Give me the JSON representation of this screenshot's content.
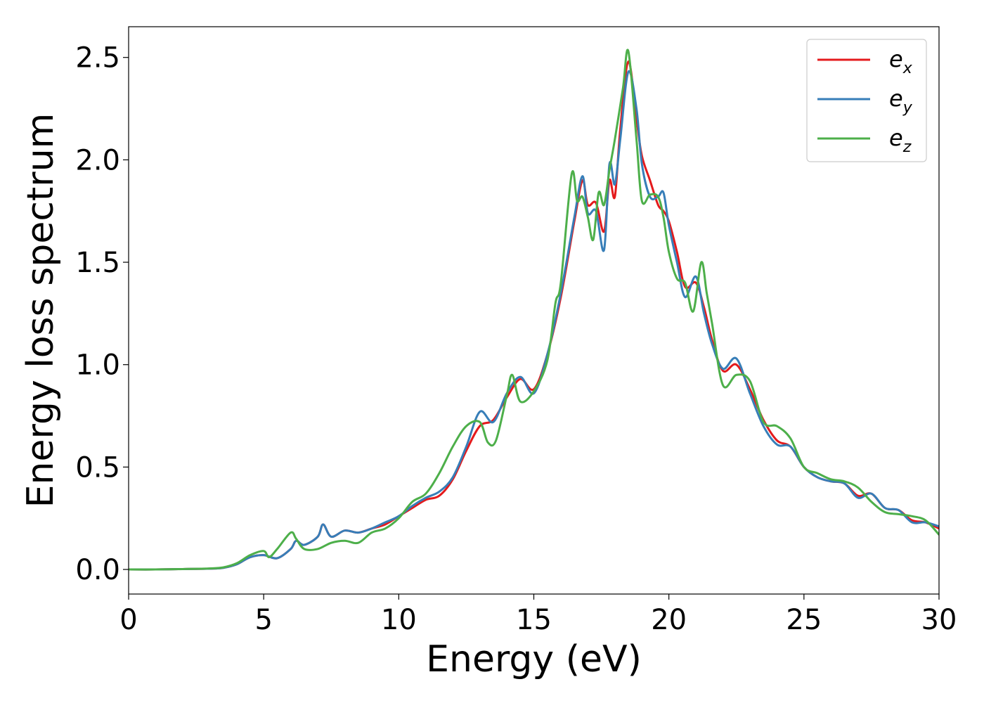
{
  "chart_data": {
    "type": "line",
    "title": "",
    "xlabel": "Energy (eV)",
    "ylabel": "Energy loss spectrum",
    "xlim": [
      0,
      30
    ],
    "ylim": [
      -0.12,
      2.65
    ],
    "xticks": [
      0,
      5,
      10,
      15,
      20,
      25,
      30
    ],
    "xtick_labels": [
      "0",
      "5",
      "10",
      "15",
      "20",
      "25",
      "30"
    ],
    "yticks": [
      0.0,
      0.5,
      1.0,
      1.5,
      2.0,
      2.5
    ],
    "ytick_labels": [
      "0.0",
      "0.5",
      "1.0",
      "1.5",
      "2.0",
      "2.5"
    ],
    "grid": false,
    "legend_position": "top-right",
    "series": [
      {
        "name": "e_x",
        "label_base": "e",
        "label_sub": "x",
        "color": "#e41a1c",
        "x": [
          0,
          1,
          2,
          3,
          3.5,
          4,
          4.5,
          5,
          5.5,
          6,
          6.2,
          6.5,
          7,
          7.2,
          7.5,
          8,
          8.5,
          9,
          9.5,
          10,
          10.5,
          11,
          11.5,
          12,
          12.5,
          13,
          13.5,
          14,
          14.5,
          15,
          15.5,
          16,
          16.5,
          16.8,
          17,
          17.3,
          17.6,
          17.8,
          18,
          18.2,
          18.5,
          18.8,
          19,
          19.3,
          19.6,
          19.8,
          20,
          20.3,
          20.6,
          21,
          21.3,
          21.6,
          22,
          22.5,
          23,
          23.5,
          24,
          24.5,
          25,
          25.5,
          26,
          26.5,
          27,
          27.5,
          28,
          28.5,
          29,
          29.5,
          30
        ],
        "y": [
          0,
          0,
          0.002,
          0.004,
          0.008,
          0.025,
          0.06,
          0.07,
          0.055,
          0.1,
          0.14,
          0.12,
          0.16,
          0.22,
          0.16,
          0.19,
          0.18,
          0.2,
          0.22,
          0.26,
          0.3,
          0.34,
          0.36,
          0.44,
          0.58,
          0.7,
          0.73,
          0.84,
          0.93,
          0.88,
          1.05,
          1.33,
          1.7,
          1.9,
          1.78,
          1.79,
          1.65,
          1.9,
          1.82,
          2.15,
          2.48,
          2.2,
          2.02,
          1.9,
          1.78,
          1.75,
          1.7,
          1.55,
          1.38,
          1.4,
          1.28,
          1.12,
          0.97,
          1.0,
          0.88,
          0.73,
          0.63,
          0.6,
          0.5,
          0.45,
          0.43,
          0.42,
          0.36,
          0.37,
          0.3,
          0.29,
          0.24,
          0.23,
          0.2
        ]
      },
      {
        "name": "e_y",
        "label_base": "e",
        "label_sub": "y",
        "color": "#377eb8",
        "x": [
          0,
          1,
          2,
          3,
          3.5,
          4,
          4.5,
          5,
          5.5,
          6,
          6.2,
          6.5,
          7,
          7.2,
          7.5,
          8,
          8.5,
          9,
          9.5,
          10,
          10.5,
          11,
          11.5,
          12,
          12.5,
          13,
          13.5,
          14,
          14.5,
          15,
          15.5,
          16,
          16.5,
          16.8,
          17,
          17.3,
          17.6,
          17.8,
          18,
          18.2,
          18.5,
          18.8,
          19,
          19.3,
          19.6,
          19.8,
          20,
          20.3,
          20.6,
          21,
          21.3,
          21.6,
          22,
          22.5,
          23,
          23.5,
          24,
          24.5,
          25,
          25.5,
          26,
          26.5,
          27,
          27.5,
          28,
          28.5,
          29,
          29.5,
          30
        ],
        "y": [
          0,
          0,
          0.002,
          0.004,
          0.008,
          0.025,
          0.06,
          0.07,
          0.055,
          0.1,
          0.14,
          0.12,
          0.16,
          0.22,
          0.16,
          0.19,
          0.18,
          0.2,
          0.23,
          0.26,
          0.31,
          0.35,
          0.38,
          0.45,
          0.6,
          0.77,
          0.72,
          0.86,
          0.94,
          0.86,
          1.05,
          1.35,
          1.72,
          1.92,
          1.74,
          1.75,
          1.56,
          1.98,
          1.88,
          2.1,
          2.43,
          2.25,
          1.98,
          1.82,
          1.82,
          1.84,
          1.68,
          1.5,
          1.33,
          1.43,
          1.25,
          1.1,
          0.98,
          1.03,
          0.86,
          0.7,
          0.61,
          0.6,
          0.5,
          0.45,
          0.43,
          0.42,
          0.35,
          0.37,
          0.3,
          0.29,
          0.23,
          0.23,
          0.21
        ]
      },
      {
        "name": "e_z",
        "label_base": "e",
        "label_sub": "z",
        "color": "#4daf4a",
        "x": [
          0,
          1,
          2,
          3,
          3.5,
          4,
          4.5,
          5,
          5.2,
          5.5,
          6,
          6.2,
          6.5,
          7,
          7.5,
          8,
          8.5,
          9,
          9.5,
          10,
          10.5,
          11,
          11.5,
          12,
          12.5,
          13,
          13.3,
          13.6,
          14,
          14.2,
          14.5,
          15,
          15.5,
          15.8,
          16,
          16.4,
          16.6,
          16.8,
          17,
          17.2,
          17.4,
          17.6,
          17.8,
          18,
          18.3,
          18.5,
          18.8,
          19,
          19.3,
          19.6,
          19.8,
          20,
          20.3,
          20.6,
          20.9,
          21.2,
          21.4,
          21.6,
          22,
          22.5,
          23,
          23.5,
          24,
          24.5,
          25,
          25.5,
          26,
          26.5,
          27,
          27.5,
          28,
          28.5,
          29,
          29.5,
          30
        ],
        "y": [
          0,
          0,
          0.002,
          0.005,
          0.01,
          0.03,
          0.07,
          0.09,
          0.06,
          0.1,
          0.18,
          0.15,
          0.1,
          0.1,
          0.13,
          0.14,
          0.13,
          0.18,
          0.2,
          0.25,
          0.33,
          0.37,
          0.47,
          0.6,
          0.7,
          0.72,
          0.62,
          0.63,
          0.85,
          0.95,
          0.82,
          0.87,
          1.02,
          1.3,
          1.4,
          1.93,
          1.8,
          1.82,
          1.72,
          1.61,
          1.84,
          1.78,
          1.95,
          2.1,
          2.35,
          2.53,
          2.1,
          1.8,
          1.83,
          1.82,
          1.72,
          1.55,
          1.42,
          1.4,
          1.26,
          1.5,
          1.35,
          1.2,
          0.9,
          0.95,
          0.92,
          0.72,
          0.7,
          0.64,
          0.5,
          0.47,
          0.44,
          0.43,
          0.4,
          0.33,
          0.28,
          0.27,
          0.26,
          0.24,
          0.17
        ]
      }
    ]
  }
}
